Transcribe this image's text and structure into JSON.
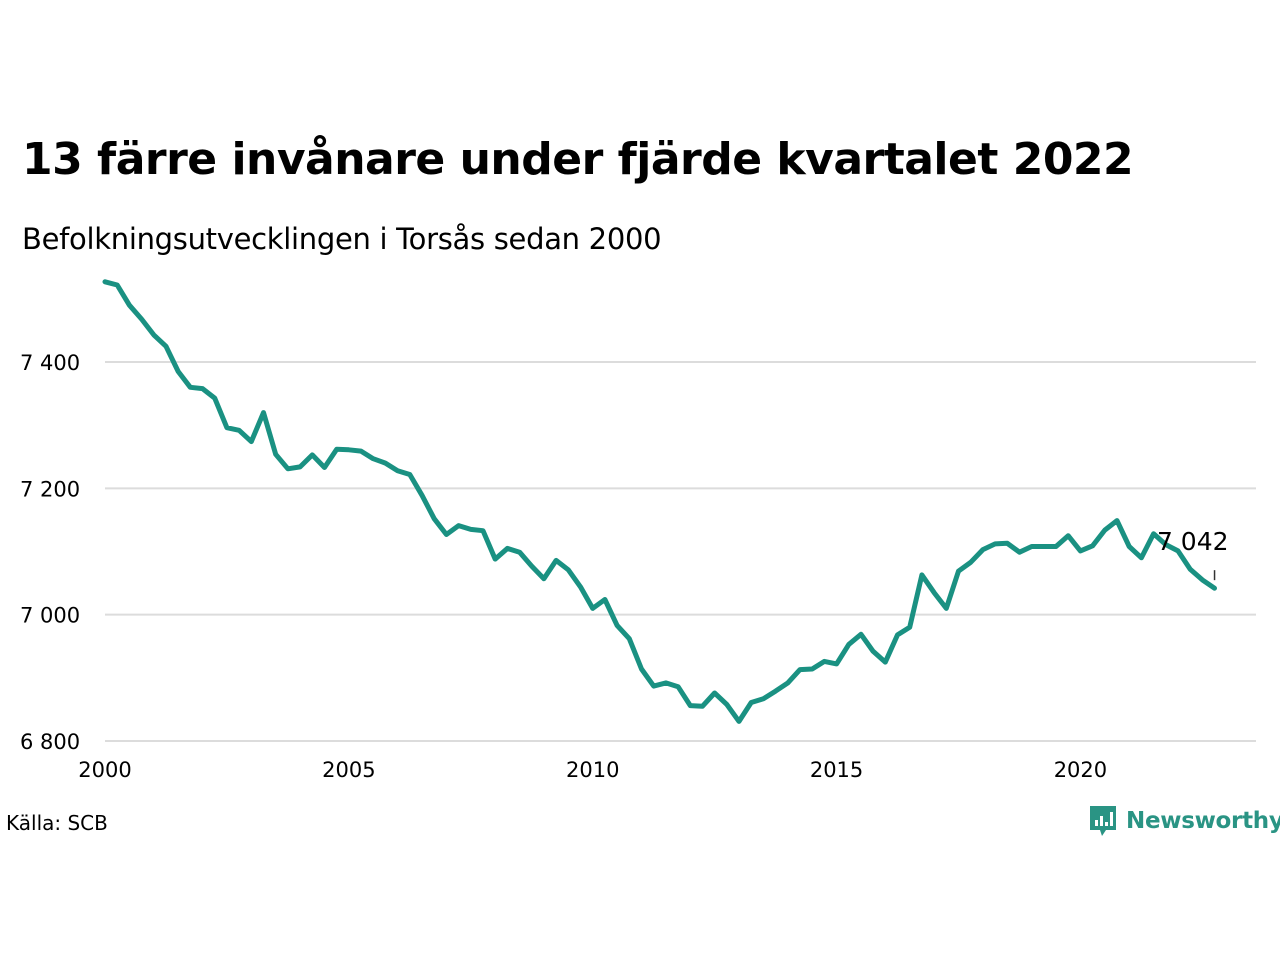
{
  "title": "13 färre invånare under fjärde kvartalet 2022",
  "subtitle": "Befolkningsutvecklingen i Torsås sedan 2000",
  "source": "Källa: SCB",
  "brand": {
    "name": "Newsworthy",
    "icon": "newsworthy-logo-icon",
    "color": "#2a9484"
  },
  "chart_data": {
    "type": "line",
    "line_color": "#1a9182",
    "grid": true,
    "xlim": [
      2000,
      2023.6
    ],
    "ylim": [
      6800,
      7560
    ],
    "x_ticks": [
      {
        "value": 2000,
        "label": "2000"
      },
      {
        "value": 2005,
        "label": "2005"
      },
      {
        "value": 2010,
        "label": "2010"
      },
      {
        "value": 2015,
        "label": "2015"
      },
      {
        "value": 2020,
        "label": "2020"
      }
    ],
    "y_ticks": [
      {
        "value": 6800,
        "label": "6 800"
      },
      {
        "value": 7000,
        "label": "7 000"
      },
      {
        "value": 7200,
        "label": "7 200"
      },
      {
        "value": 7400,
        "label": "7 400"
      }
    ],
    "annotation": {
      "x": 2022.75,
      "y": 7042,
      "label": "7 042"
    },
    "series": [
      {
        "x": [
          2000.0,
          2000.25,
          2000.5,
          2000.75,
          2001.0,
          2001.25,
          2001.5,
          2001.75,
          2002.0,
          2002.25,
          2002.5,
          2002.75,
          2003.0,
          2003.25,
          2003.5,
          2003.75,
          2004.0,
          2004.25,
          2004.5,
          2004.75,
          2005.0,
          2005.25,
          2005.5,
          2005.75,
          2006.0,
          2006.25,
          2006.5,
          2006.75,
          2007.0,
          2007.25,
          2007.5,
          2007.75,
          2008.0,
          2008.25,
          2008.5,
          2008.75,
          2009.0,
          2009.25,
          2009.5,
          2009.75,
          2010.0,
          2010.25,
          2010.5,
          2010.75,
          2011.0,
          2011.25,
          2011.5,
          2011.75,
          2012.0,
          2012.25,
          2012.5,
          2012.75,
          2013.0,
          2013.25,
          2013.5,
          2013.75,
          2014.0,
          2014.25,
          2014.5,
          2014.75,
          2015.0,
          2015.25,
          2015.5,
          2015.75,
          2016.0,
          2016.25,
          2016.5,
          2016.75,
          2017.0,
          2017.25,
          2017.5,
          2017.75,
          2018.0,
          2018.25,
          2018.5,
          2018.75,
          2019.0,
          2019.25,
          2019.5,
          2019.75,
          2020.0,
          2020.25,
          2020.5,
          2020.75,
          2021.0,
          2021.25,
          2021.5,
          2021.75,
          2022.0,
          2022.25,
          2022.5,
          2022.75
        ],
        "values": [
          7527,
          7522,
          7490,
          7468,
          7443,
          7425,
          7385,
          7360,
          7358,
          7343,
          7296,
          7292,
          7274,
          7320,
          7254,
          7231,
          7234,
          7253,
          7233,
          7262,
          7261,
          7259,
          7247,
          7240,
          7228,
          7222,
          7189,
          7152,
          7127,
          7141,
          7135,
          7133,
          7088,
          7105,
          7099,
          7077,
          7057,
          7086,
          7071,
          7044,
          7010,
          7024,
          6983,
          6962,
          6914,
          6887,
          6892,
          6886,
          6856,
          6855,
          6876,
          6858,
          6831,
          6861,
          6867,
          6879,
          6892,
          6913,
          6914,
          6926,
          6922,
          6953,
          6969,
          6942,
          6925,
          6968,
          6980,
          7063,
          7035,
          7010,
          7069,
          7083,
          7103,
          7112,
          7113,
          7099,
          7108,
          7108,
          7108,
          7125,
          7101,
          7109,
          7134,
          7149,
          7108,
          7090,
          7128,
          7111,
          7101,
          7072,
          7055,
          7042
        ]
      }
    ]
  }
}
